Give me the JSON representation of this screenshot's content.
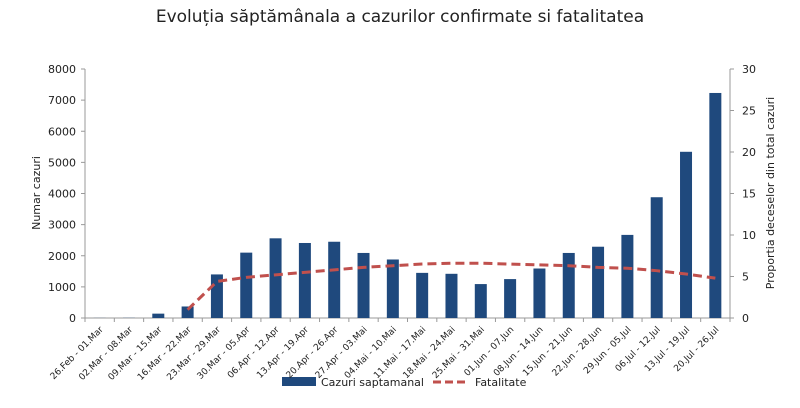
{
  "chart_data": {
    "type": "bar",
    "title": "Evoluția săptămânala a cazurilor confirmate si fatalitatea",
    "ylabel": "Numar cazuri",
    "y2label": "Proportia deceselor din total cazuri",
    "ylim": [
      0,
      8000
    ],
    "y2lim": [
      0,
      30
    ],
    "yticks": [
      0,
      1000,
      2000,
      3000,
      4000,
      5000,
      6000,
      7000,
      8000
    ],
    "y2ticks": [
      0,
      5,
      10,
      15,
      20,
      25,
      30
    ],
    "grid": false,
    "legend_position": "bottom",
    "categories": [
      "26.Feb - 01.Mar",
      "02.Mar - 08.Mar",
      "09.Mar - 15.Mar",
      "16.Mar - 22.Mar",
      "23.Mar - 29.Mar",
      "30.Mar - 05.Apr",
      "06.Apr - 12.Apr",
      "13.Apr - 19.Apr",
      "20.Apr - 26.Apr",
      "27.Apr - 03.Mai",
      "04.Mai - 10.Mai",
      "11.Mai - 17.Mai",
      "18.Mai - 24.Mai",
      "25.Mai - 31.Mai",
      "01.Jun - 07.Jun",
      "08.Jun - 14.Jun",
      "15.Jun - 21.Jun",
      "22.Jun - 28.Jun",
      "29.Jun - 05.Jul",
      "06.Jul - 12.Jul",
      "13.Jul - 19.Jul",
      "20.Jul - 26.Jul"
    ],
    "series": [
      {
        "name": "Cazuri saptamanal",
        "type": "bar",
        "axis": "left",
        "color": "#1f497d",
        "values": [
          3,
          5,
          140,
          370,
          1400,
          2100,
          2560,
          2410,
          2450,
          2090,
          1880,
          1450,
          1420,
          1090,
          1250,
          1590,
          2090,
          2290,
          2670,
          3880,
          5340,
          7230
        ]
      },
      {
        "name": "Fatalitate",
        "type": "line",
        "axis": "right",
        "color": "#c0504d",
        "style": "dashed",
        "values": [
          null,
          null,
          null,
          1.0,
          4.4,
          4.9,
          5.2,
          5.5,
          5.8,
          6.1,
          6.3,
          6.5,
          6.6,
          6.6,
          6.5,
          6.4,
          6.3,
          6.1,
          6.0,
          5.7,
          5.3,
          4.8
        ]
      }
    ]
  }
}
